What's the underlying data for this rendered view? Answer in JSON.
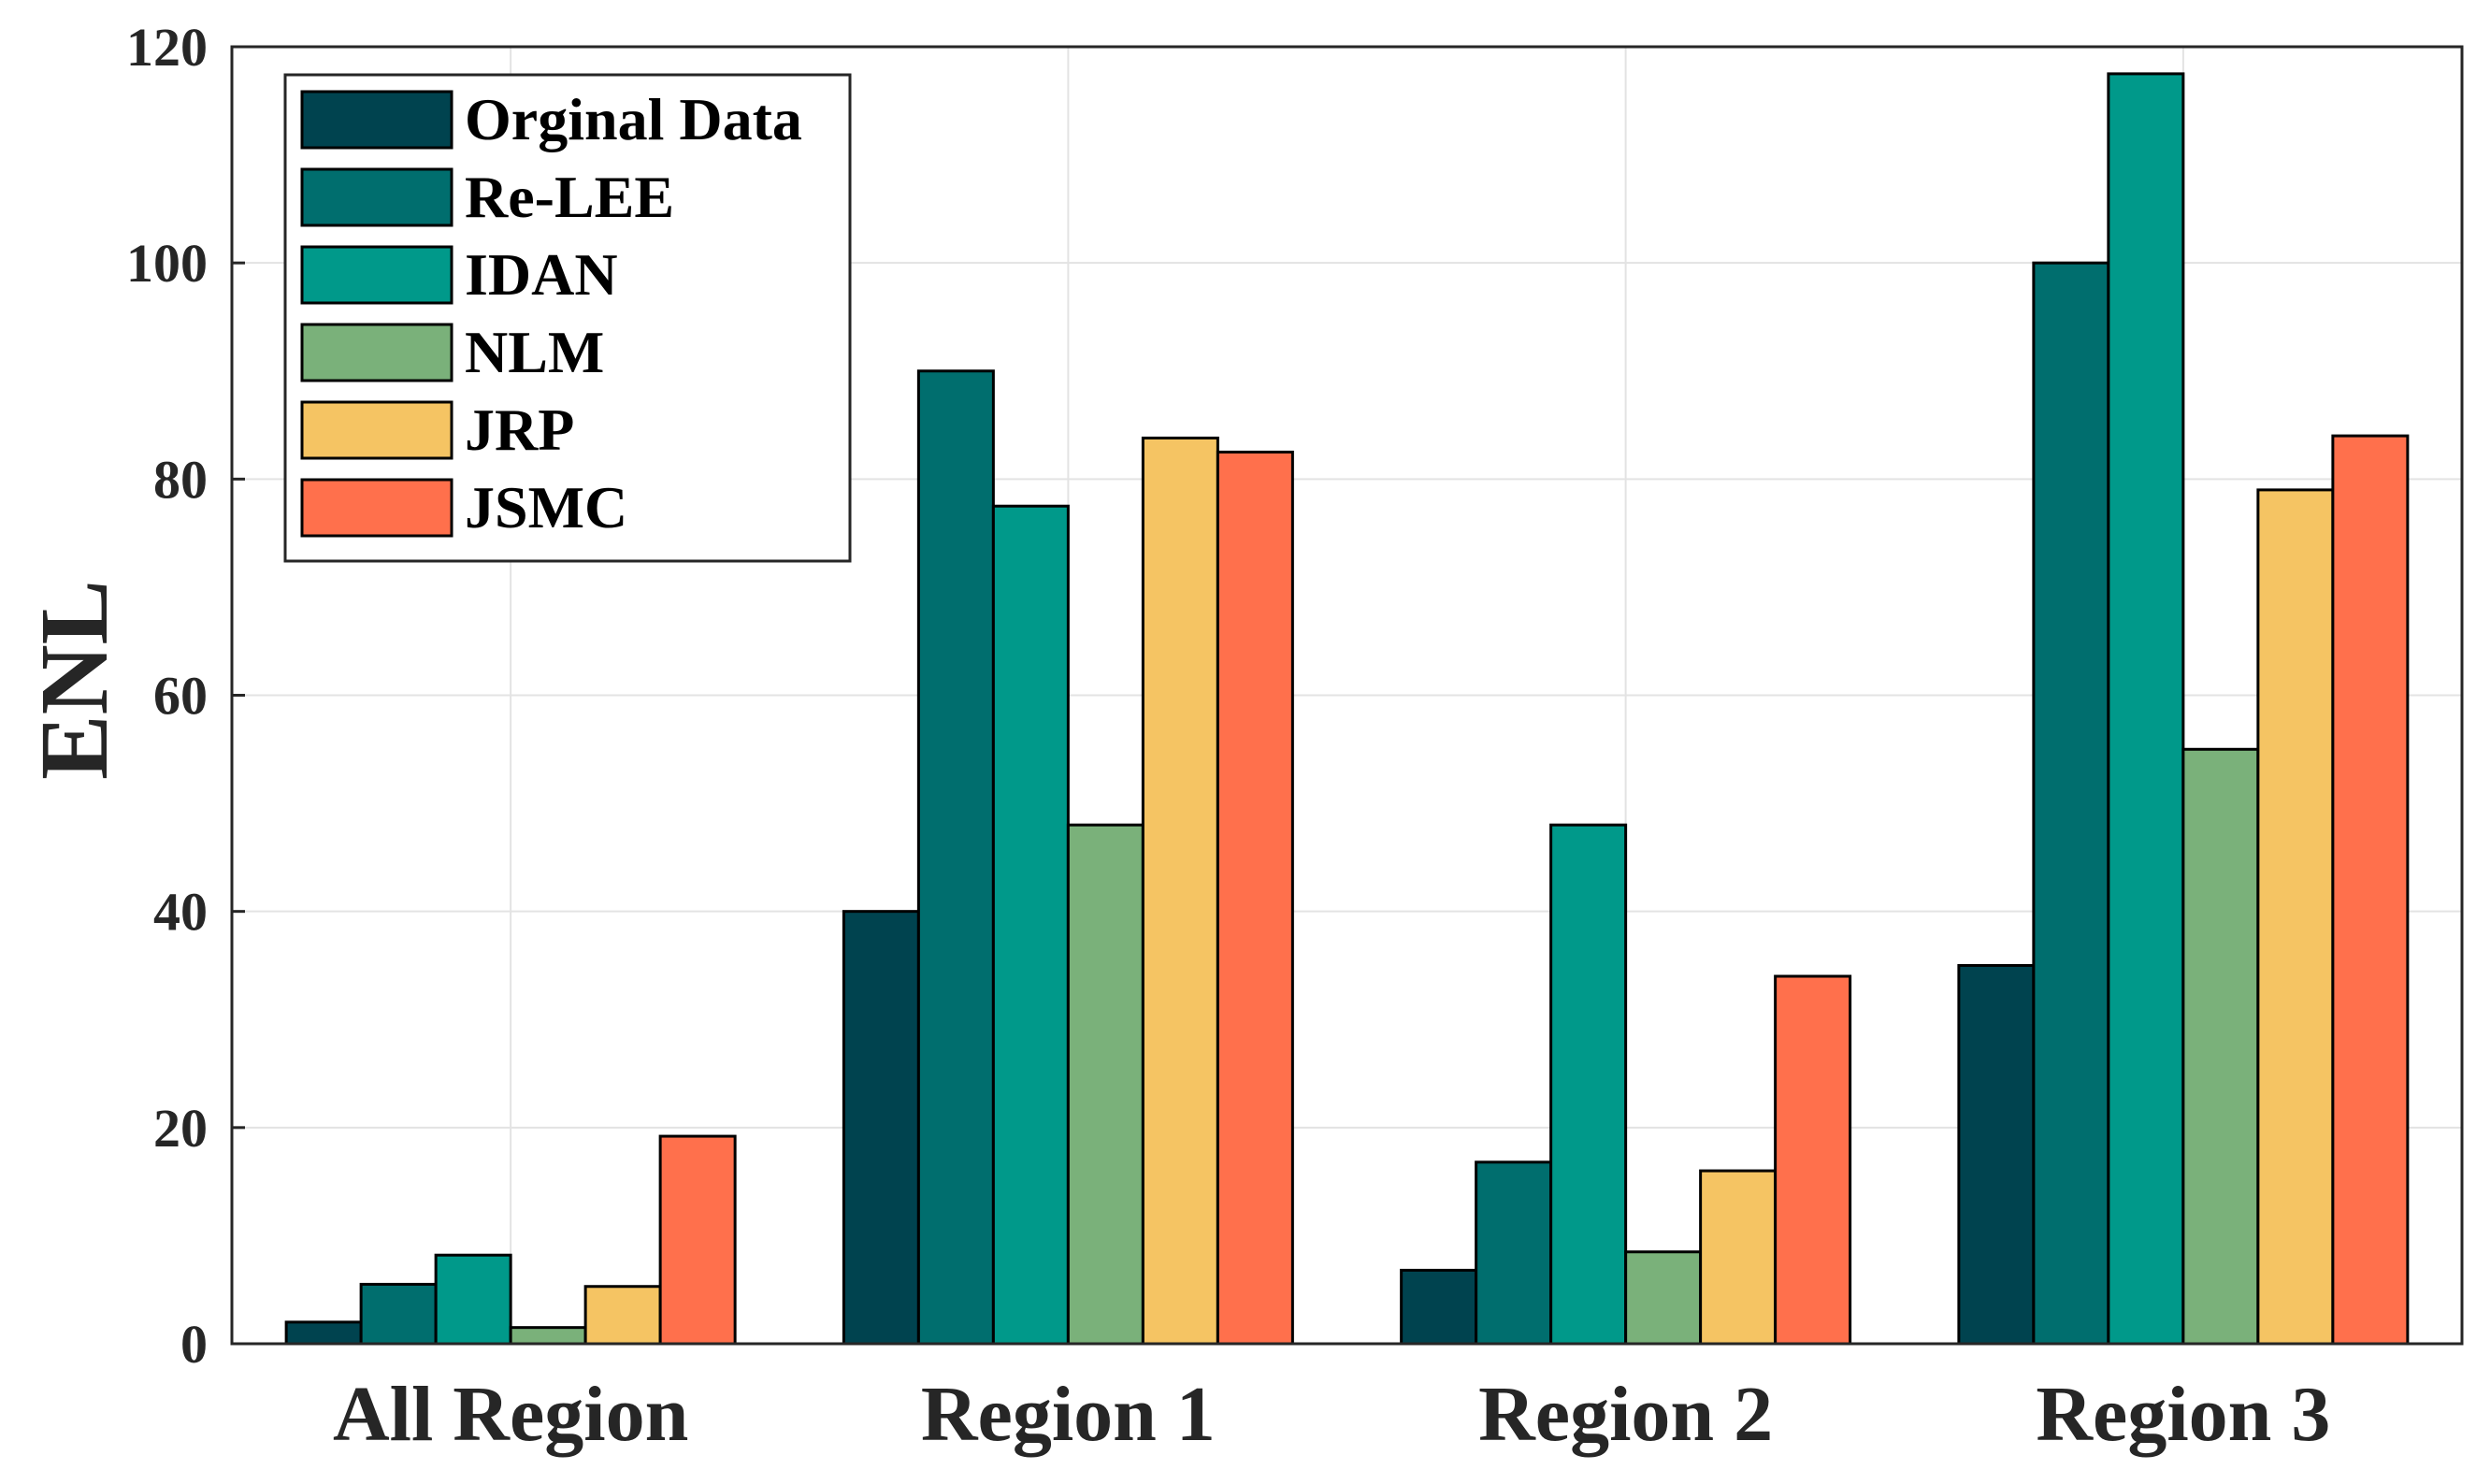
{
  "chart_data": {
    "type": "bar",
    "title": "",
    "xlabel": "",
    "ylabel": "ENL",
    "ylim": [
      0,
      120
    ],
    "yticks": [
      0,
      20,
      40,
      60,
      80,
      100,
      120
    ],
    "grid": true,
    "legend_position": "top-left",
    "categories": [
      "All Region",
      "Region 1",
      "Region 2",
      "Region 3"
    ],
    "series": [
      {
        "name": "Orginal Data",
        "color": "#00434f",
        "values": [
          2,
          40,
          6.8,
          35
        ]
      },
      {
        "name": "Re-LEE",
        "color": "#006e6e",
        "values": [
          5.5,
          90,
          16.8,
          100
        ]
      },
      {
        "name": "IDAN",
        "color": "#00998a",
        "values": [
          8.2,
          77.5,
          48,
          117.5
        ]
      },
      {
        "name": "NLM",
        "color": "#7ab17a",
        "values": [
          1.5,
          48,
          8.5,
          55
        ]
      },
      {
        "name": "JRP",
        "color": "#f5c463",
        "values": [
          5.3,
          83.8,
          16,
          79
        ]
      },
      {
        "name": "JSMC",
        "color": "#ff704c",
        "values": [
          19.2,
          82.5,
          34,
          84
        ]
      }
    ]
  }
}
